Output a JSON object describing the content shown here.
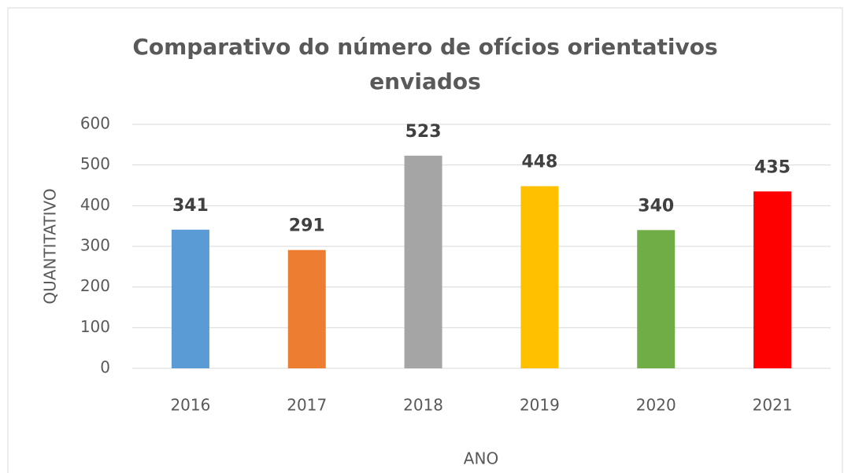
{
  "chart_data": {
    "type": "bar",
    "title": "Comparativo do número de ofícios orientativos enviados",
    "y_label": "QUANTITATIVO",
    "x_label": "ANO",
    "categories": [
      "2016",
      "2017",
      "2018",
      "2019",
      "2020",
      "2021"
    ],
    "values": [
      341,
      291,
      523,
      448,
      340,
      435
    ],
    "colors": [
      "#5b9bd5",
      "#ed7d31",
      "#a5a5a5",
      "#ffc000",
      "#70ad47",
      "#ff0000"
    ],
    "ylim": [
      0,
      600
    ],
    "yticks": [
      0,
      100,
      200,
      300,
      400,
      500,
      600
    ],
    "grid": true
  }
}
